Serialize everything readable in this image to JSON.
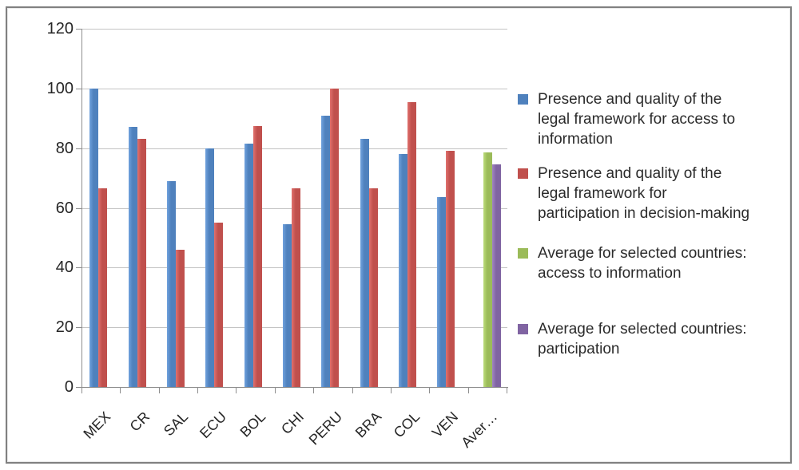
{
  "figure": {
    "background": "#FFFFFF",
    "border_color": "#808080"
  },
  "chart_data": {
    "type": "bar",
    "title": "",
    "xlabel": "",
    "ylabel": "",
    "categories": [
      "MEX",
      "CR",
      "SAL",
      "ECU",
      "BOL",
      "CHI",
      "PERU",
      "BRA",
      "COL",
      "VEN",
      "Aver…"
    ],
    "series": [
      {
        "name": "Presence and quality of the legal framework for access to information",
        "color": "#4F81BD",
        "values": [
          100,
          87,
          69,
          80,
          81.5,
          54.5,
          91,
          83,
          78,
          63.5,
          null
        ]
      },
      {
        "name": "Presence and quality of the legal framework for participation in decision-making",
        "color": "#C0504D",
        "values": [
          66.5,
          83,
          46,
          55,
          87.5,
          66.5,
          100,
          66.5,
          95.5,
          79,
          null
        ]
      },
      {
        "name": "Average for selected countries: access to information",
        "color": "#9BBB59",
        "values": [
          null,
          null,
          null,
          null,
          null,
          null,
          null,
          null,
          null,
          null,
          78.5
        ]
      },
      {
        "name": "Average for selected countries: participation",
        "color": "#8064A2",
        "values": [
          null,
          null,
          null,
          null,
          null,
          null,
          null,
          null,
          null,
          null,
          74.5
        ]
      }
    ],
    "ylim": [
      0,
      120
    ],
    "yticks": [
      0,
      20,
      40,
      60,
      80,
      100,
      120
    ],
    "grid": true,
    "legend_position": "right"
  },
  "legend": {
    "items": [
      {
        "color": "#4F81BD",
        "lines": [
          "Presence and quality of the",
          "legal framework for access to",
          "information"
        ]
      },
      {
        "color": "#C0504D",
        "lines": [
          "Presence and quality of the",
          "legal framework for",
          "participation in decision-making"
        ]
      },
      {
        "color": "#9BBB59",
        "lines": [
          "Average for selected countries:",
          "access to information"
        ]
      },
      {
        "color": "#8064A2",
        "lines": [
          "Average for selected countries:",
          "participation"
        ]
      }
    ]
  }
}
